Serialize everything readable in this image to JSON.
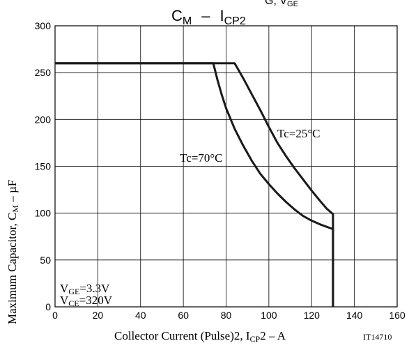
{
  "chart_data": {
    "type": "line",
    "title": {
      "main_c": "C",
      "main_c_sub": "M",
      "dash": "–",
      "main_i": "I",
      "main_i_sub": "CP2",
      "cropped_fragment": "G, V",
      "cropped_fragment_sub": "GE"
    },
    "xlabel": {
      "prefix": "Collector Current (Pulse)2, I",
      "sub": "CP",
      "suffix": "2  –  A"
    },
    "ylabel": {
      "prefix": "Maximum Capacitor, C",
      "sub": "M",
      "suffix": "  –  µF"
    },
    "xlim": [
      0,
      160
    ],
    "ylim": [
      0,
      300
    ],
    "x_ticks": [
      0,
      20,
      40,
      60,
      80,
      100,
      120,
      140,
      160
    ],
    "y_ticks": [
      0,
      50,
      100,
      150,
      200,
      250,
      300
    ],
    "grid": true,
    "series": [
      {
        "name": "Tc=25°C",
        "points": [
          [
            0,
            260
          ],
          [
            84,
            260
          ],
          [
            88,
            244
          ],
          [
            92,
            227
          ],
          [
            96,
            210
          ],
          [
            100,
            192
          ],
          [
            104,
            175
          ],
          [
            108,
            161
          ],
          [
            112,
            148
          ],
          [
            116,
            136
          ],
          [
            120,
            124
          ],
          [
            124,
            113
          ],
          [
            127,
            105
          ],
          [
            130,
            99
          ],
          [
            130,
            0
          ]
        ]
      },
      {
        "name": "Tc=70°C",
        "points": [
          [
            0,
            260
          ],
          [
            74,
            260
          ],
          [
            76,
            242
          ],
          [
            78,
            226
          ],
          [
            80,
            212
          ],
          [
            84,
            190
          ],
          [
            88,
            172
          ],
          [
            92,
            156
          ],
          [
            96,
            142
          ],
          [
            100,
            131
          ],
          [
            104,
            121
          ],
          [
            108,
            112
          ],
          [
            112,
            104
          ],
          [
            116,
            97
          ],
          [
            120,
            92
          ],
          [
            124,
            88
          ],
          [
            130,
            83
          ],
          [
            130,
            0
          ]
        ]
      }
    ],
    "annotations": {
      "tc25": "Tc=25°C",
      "tc70": "Tc=70°C",
      "vge_prefix": "V",
      "vge_sub": "GE",
      "vge_suffix": "=3.3V",
      "vce_prefix": "V",
      "vce_sub": "CE",
      "vce_suffix": "=320V",
      "figure_id": "IT14710"
    },
    "line_color": "#1a1a1a",
    "grid_color": "#000000"
  }
}
